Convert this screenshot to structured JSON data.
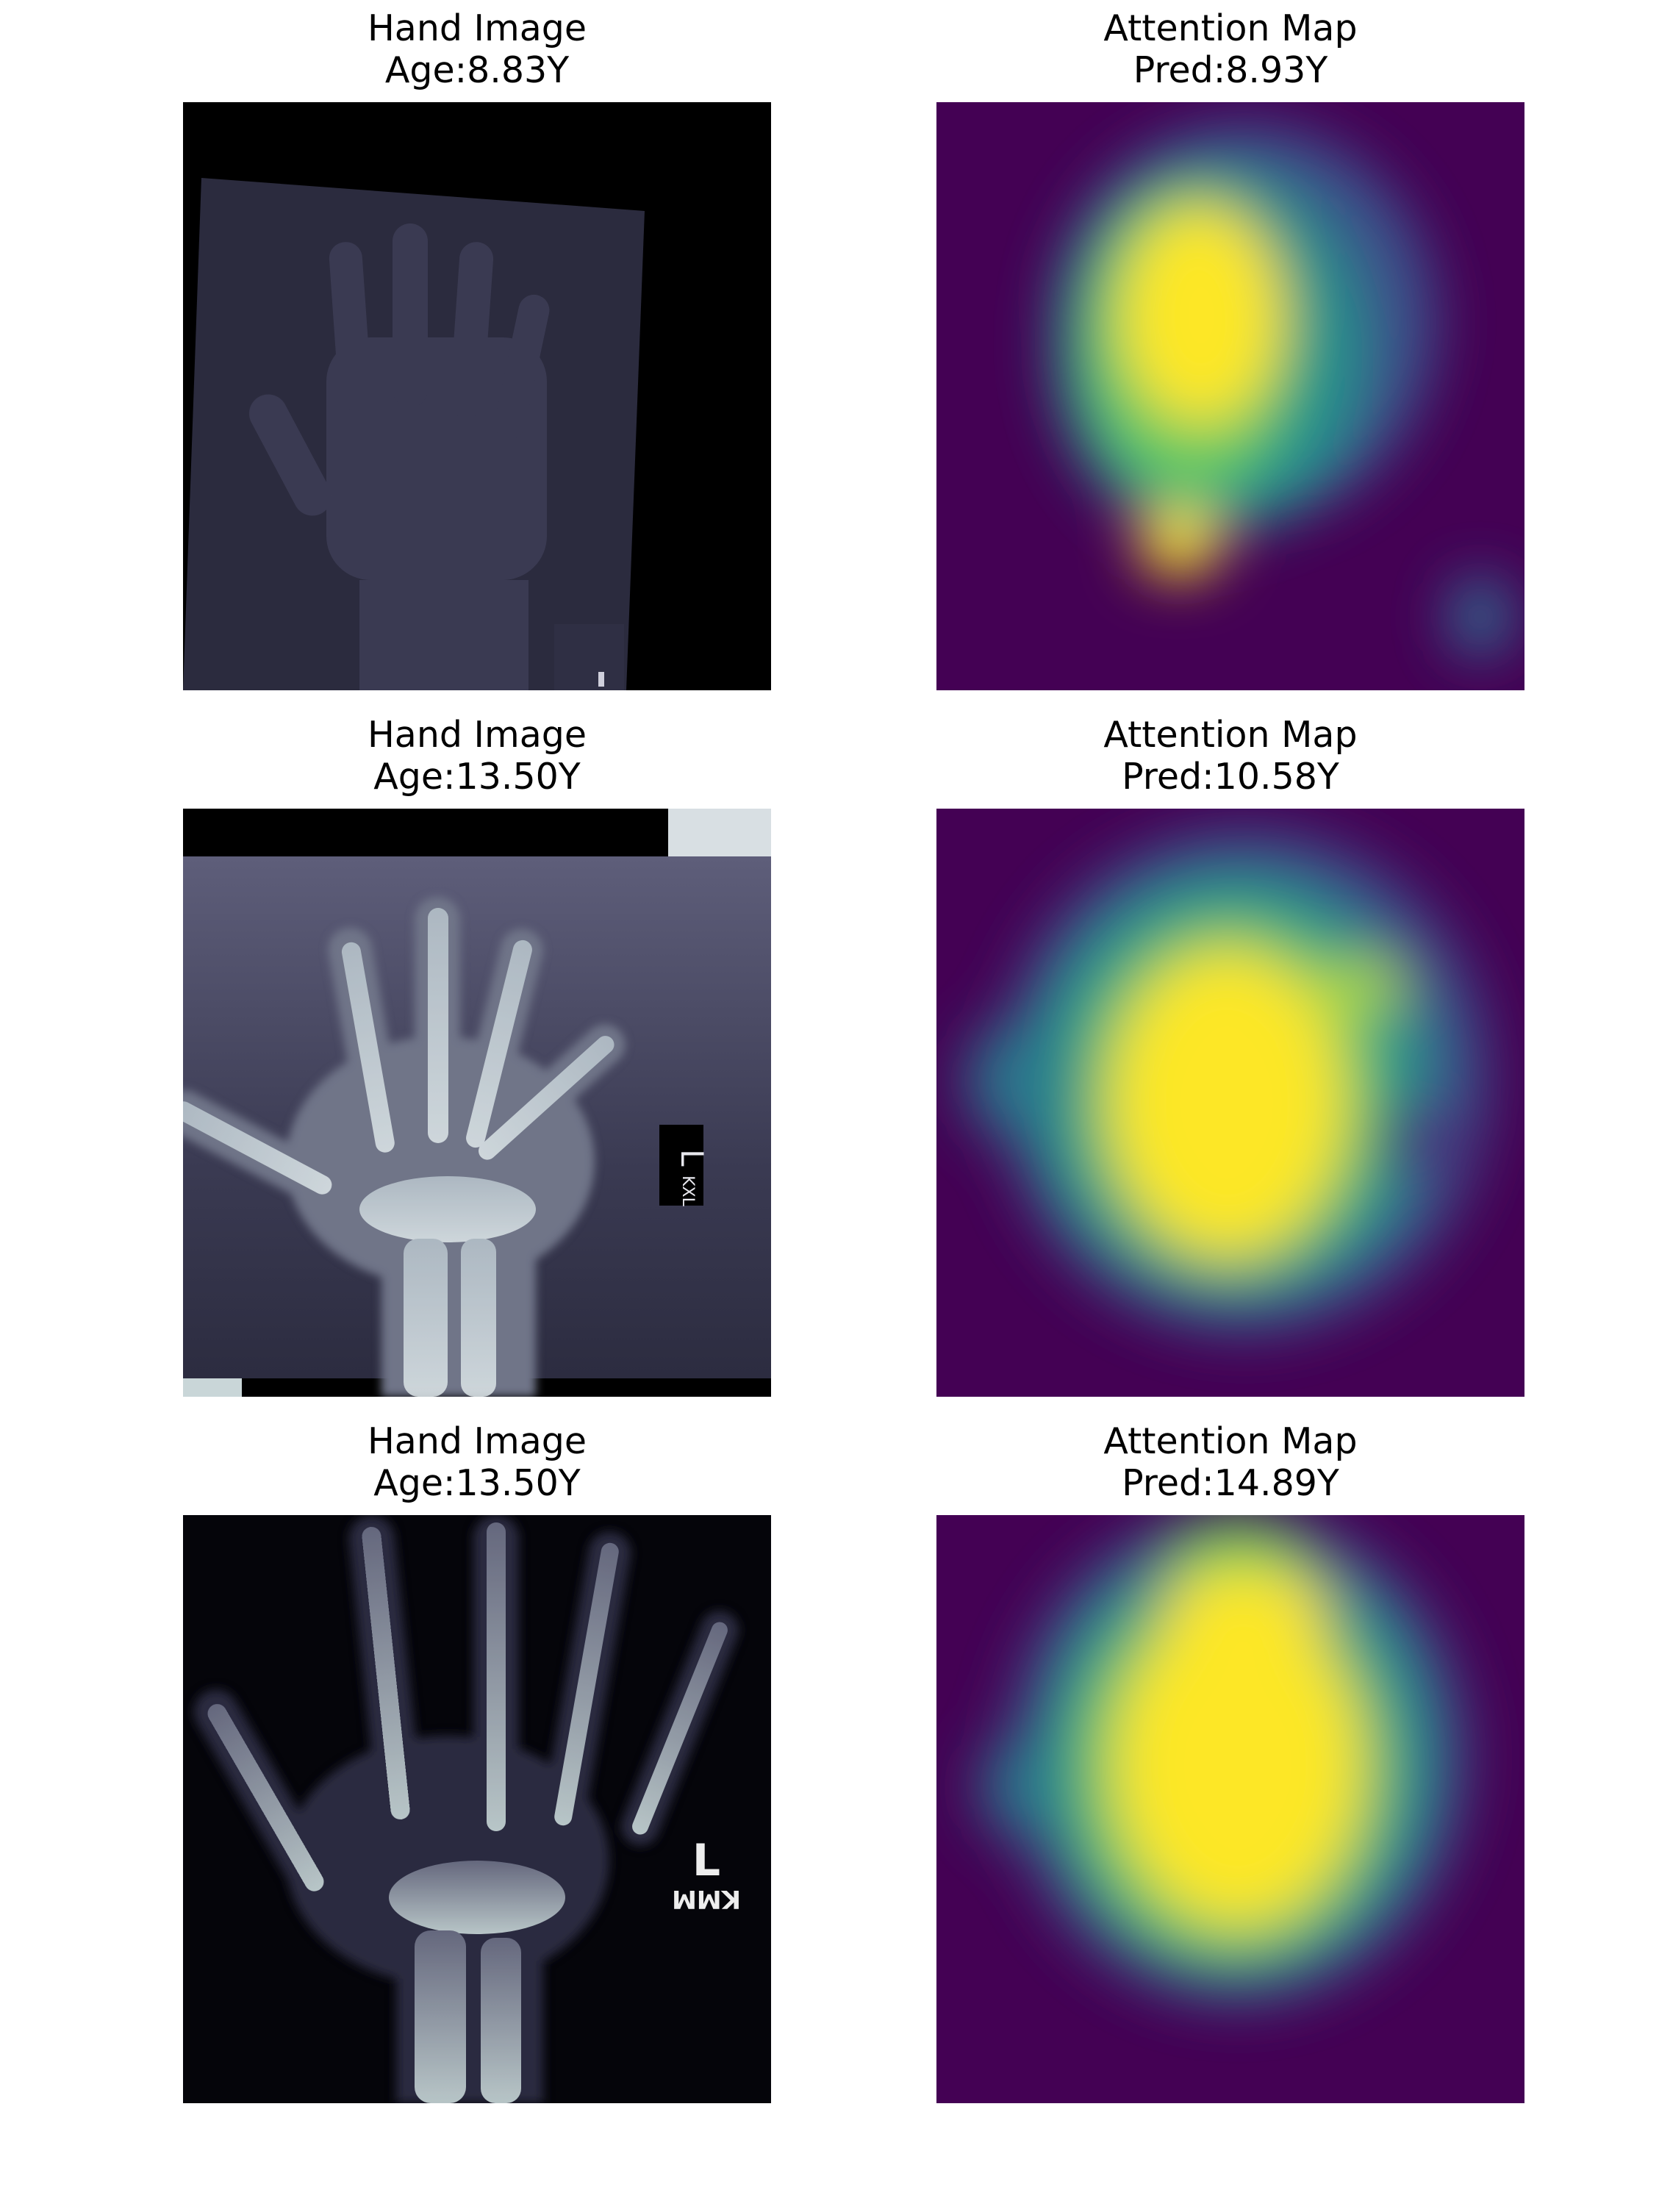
{
  "figure": {
    "rows": [
      {
        "left": {
          "title": "Hand Image",
          "subtitle": "Age:8.83Y"
        },
        "right": {
          "title": "Attention Map",
          "subtitle": "Pred:8.93Y"
        }
      },
      {
        "left": {
          "title": "Hand Image",
          "subtitle": "Age:13.50Y"
        },
        "right": {
          "title": "Attention Map",
          "subtitle": "Pred:10.58Y"
        }
      },
      {
        "left": {
          "title": "Hand Image",
          "subtitle": "Age:13.50Y"
        },
        "right": {
          "title": "Attention Map",
          "subtitle": "Pred:14.89Y"
        }
      }
    ],
    "xray_markers": {
      "row2": "L\nKXL",
      "row3_letter": "L",
      "row3_code": "KMM"
    },
    "colors": {
      "viridis_low": "#440154",
      "viridis_mid": "#21918c",
      "viridis_high": "#fde725",
      "xray_bg": "#000000",
      "xray_plate": "#2a2a3d"
    }
  }
}
